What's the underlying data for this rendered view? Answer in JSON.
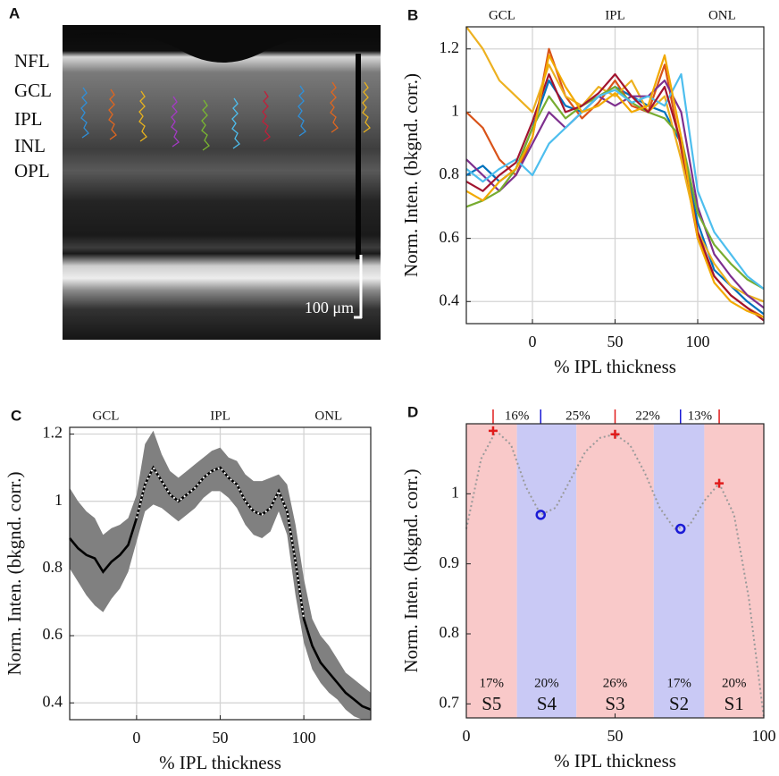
{
  "chart_data": [
    {
      "type": "image",
      "panel": "A",
      "layer_labels": [
        "NFL",
        "GCL",
        "IPL",
        "INL",
        "OPL"
      ],
      "scale_bar_label": "100 μm"
    },
    {
      "type": "line",
      "panel": "B",
      "region_labels": [
        "GCL",
        "IPL",
        "ONL"
      ],
      "xlabel": "% IPL thickness",
      "ylabel": "Norm. Inten. (bkgnd. corr.)",
      "xlim": [
        -40,
        140
      ],
      "ylim": [
        0.33,
        1.27
      ],
      "xticks": [
        0,
        50,
        100
      ],
      "yticks": [
        0.4,
        0.6,
        0.8,
        1,
        1.2
      ],
      "grid": true,
      "x": [
        -40,
        -30,
        -20,
        -10,
        0,
        10,
        20,
        30,
        40,
        50,
        60,
        70,
        80,
        90,
        100,
        110,
        120,
        130,
        140
      ],
      "series": [
        {
          "color": "#0072BD",
          "values": [
            0.8,
            0.83,
            0.78,
            0.82,
            0.95,
            1.1,
            1.02,
            1.0,
            1.05,
            1.08,
            1.05,
            1.02,
            1.0,
            0.9,
            0.65,
            0.5,
            0.45,
            0.4,
            0.36
          ]
        },
        {
          "color": "#D95319",
          "values": [
            1.0,
            0.95,
            0.85,
            0.8,
            0.92,
            1.2,
            1.05,
            0.98,
            1.03,
            1.1,
            1.02,
            1.0,
            1.15,
            0.88,
            0.6,
            0.48,
            0.42,
            0.38,
            0.35
          ]
        },
        {
          "color": "#EDB120",
          "values": [
            1.27,
            1.2,
            1.1,
            1.05,
            1.0,
            1.15,
            1.05,
            1.02,
            1.08,
            1.05,
            1.1,
            1.0,
            1.05,
            0.85,
            0.62,
            0.52,
            0.45,
            0.42,
            0.4
          ]
        },
        {
          "color": "#7E2F8E",
          "values": [
            0.85,
            0.8,
            0.75,
            0.8,
            0.9,
            1.0,
            0.95,
            1.0,
            1.05,
            1.02,
            1.05,
            1.05,
            1.1,
            1.0,
            0.7,
            0.55,
            0.48,
            0.42,
            0.38
          ]
        },
        {
          "color": "#77AC30",
          "values": [
            0.7,
            0.72,
            0.75,
            0.82,
            0.95,
            1.05,
            0.98,
            1.02,
            1.05,
            1.08,
            1.03,
            1.0,
            0.98,
            0.92,
            0.68,
            0.58,
            0.52,
            0.47,
            0.44
          ]
        },
        {
          "color": "#4DBEEE",
          "values": [
            0.82,
            0.78,
            0.82,
            0.85,
            0.8,
            0.9,
            0.95,
            1.0,
            1.05,
            1.07,
            1.03,
            1.05,
            1.02,
            1.12,
            0.75,
            0.62,
            0.55,
            0.48,
            0.44
          ]
        },
        {
          "color": "#A2142F",
          "values": [
            0.78,
            0.75,
            0.8,
            0.84,
            0.97,
            1.12,
            1.0,
            1.02,
            1.06,
            1.12,
            1.05,
            1.0,
            1.08,
            0.9,
            0.62,
            0.48,
            0.42,
            0.38,
            0.34
          ]
        },
        {
          "color": "#F2A900",
          "values": [
            0.75,
            0.72,
            0.78,
            0.82,
            0.92,
            1.18,
            1.08,
            1.0,
            1.02,
            1.06,
            1.0,
            1.02,
            1.18,
            0.92,
            0.6,
            0.46,
            0.4,
            0.37,
            0.35
          ]
        }
      ]
    },
    {
      "type": "band_line",
      "panel": "C",
      "region_labels": [
        "GCL",
        "IPL",
        "ONL"
      ],
      "xlabel": "% IPL thickness",
      "ylabel": "Norm. Inten. (bkgnd. corr.)",
      "xlim": [
        -40,
        140
      ],
      "ylim": [
        0.35,
        1.22
      ],
      "xticks": [
        0,
        50,
        100
      ],
      "yticks": [
        0.4,
        0.6,
        0.8,
        1,
        1.2
      ],
      "grid": true,
      "x": [
        -40,
        -35,
        -30,
        -25,
        -20,
        -15,
        -10,
        -5,
        0,
        5,
        10,
        15,
        20,
        25,
        30,
        35,
        40,
        45,
        50,
        55,
        60,
        65,
        70,
        75,
        80,
        85,
        90,
        95,
        100,
        105,
        110,
        115,
        120,
        125,
        130,
        135,
        140
      ],
      "band_color": "#808080",
      "upper": [
        1.04,
        1.0,
        0.97,
        0.95,
        0.9,
        0.92,
        0.93,
        0.95,
        1.02,
        1.17,
        1.21,
        1.14,
        1.09,
        1.07,
        1.09,
        1.11,
        1.13,
        1.15,
        1.16,
        1.13,
        1.12,
        1.08,
        1.06,
        1.06,
        1.07,
        1.08,
        1.05,
        0.93,
        0.77,
        0.65,
        0.6,
        0.57,
        0.53,
        0.49,
        0.47,
        0.45,
        0.43
      ],
      "lower": [
        0.8,
        0.76,
        0.72,
        0.69,
        0.67,
        0.71,
        0.74,
        0.79,
        0.88,
        0.97,
        0.99,
        0.98,
        0.96,
        0.94,
        0.96,
        0.98,
        1.01,
        1.03,
        1.03,
        1.01,
        0.98,
        0.93,
        0.9,
        0.89,
        0.91,
        0.97,
        0.9,
        0.72,
        0.58,
        0.5,
        0.46,
        0.43,
        0.41,
        0.38,
        0.36,
        0.35,
        0.35
      ],
      "series": [
        {
          "color": "#000000",
          "values": [
            0.89,
            0.86,
            0.84,
            0.83,
            0.79,
            0.82,
            0.84,
            0.87,
            0.95,
            1.05,
            1.1,
            1.06,
            1.02,
            1.0,
            1.02,
            1.04,
            1.07,
            1.09,
            1.1,
            1.07,
            1.05,
            1.0,
            0.97,
            0.96,
            0.98,
            1.03,
            0.97,
            0.82,
            0.65,
            0.57,
            0.52,
            0.49,
            0.46,
            0.43,
            0.41,
            0.39,
            0.38
          ]
        },
        {
          "color": "#ffffff",
          "dotted": true,
          "values": [
            null,
            null,
            null,
            null,
            null,
            null,
            null,
            null,
            0.95,
            1.05,
            1.1,
            1.06,
            1.02,
            1.0,
            1.02,
            1.04,
            1.07,
            1.09,
            1.1,
            1.07,
            1.05,
            1.0,
            0.97,
            0.96,
            0.98,
            1.03,
            0.97,
            0.82,
            0.65,
            null,
            null,
            null,
            null,
            null,
            null,
            null,
            null
          ]
        }
      ]
    },
    {
      "type": "segmented_profile",
      "panel": "D",
      "xlabel": "% IPL thickness",
      "ylabel": "Norm. Inten. (bkgnd. corr.)",
      "xlim": [
        0,
        100
      ],
      "ylim": [
        0.68,
        1.1
      ],
      "xticks": [
        0,
        50,
        100
      ],
      "yticks": [
        0.7,
        0.8,
        0.9,
        1
      ],
      "x": [
        0,
        5,
        10,
        15,
        20,
        25,
        30,
        35,
        40,
        45,
        50,
        55,
        60,
        65,
        70,
        75,
        80,
        85,
        90,
        95,
        100
      ],
      "values": [
        0.95,
        1.05,
        1.09,
        1.07,
        1.01,
        0.97,
        0.98,
        1.02,
        1.06,
        1.08,
        1.085,
        1.07,
        1.03,
        0.98,
        0.95,
        0.955,
        0.99,
        1.015,
        0.97,
        0.85,
        0.68
      ],
      "curve_color": "#9a9a9a",
      "sublayers": {
        "names": [
          "S5",
          "S4",
          "S3",
          "S2",
          "S1"
        ],
        "shares": [
          "17%",
          "20%",
          "26%",
          "17%",
          "20%"
        ],
        "edges": [
          0,
          17,
          37,
          63,
          80,
          100
        ],
        "colors": [
          "#f9c9c9",
          "#c9c9f5",
          "#f9c9c9",
          "#c9c9f5",
          "#f9c9c9"
        ]
      },
      "extrema": {
        "x": [
          9,
          25,
          50,
          72,
          85
        ],
        "y": [
          1.09,
          0.97,
          1.085,
          0.95,
          1.015
        ],
        "markers": [
          "plus",
          "circle",
          "plus",
          "circle",
          "plus"
        ],
        "colors": [
          "#e01b1b",
          "#1a1ad6",
          "#e01b1b",
          "#1a1ad6",
          "#e01b1b"
        ],
        "spacings": [
          "16%",
          "25%",
          "22%",
          "13%"
        ]
      }
    }
  ]
}
